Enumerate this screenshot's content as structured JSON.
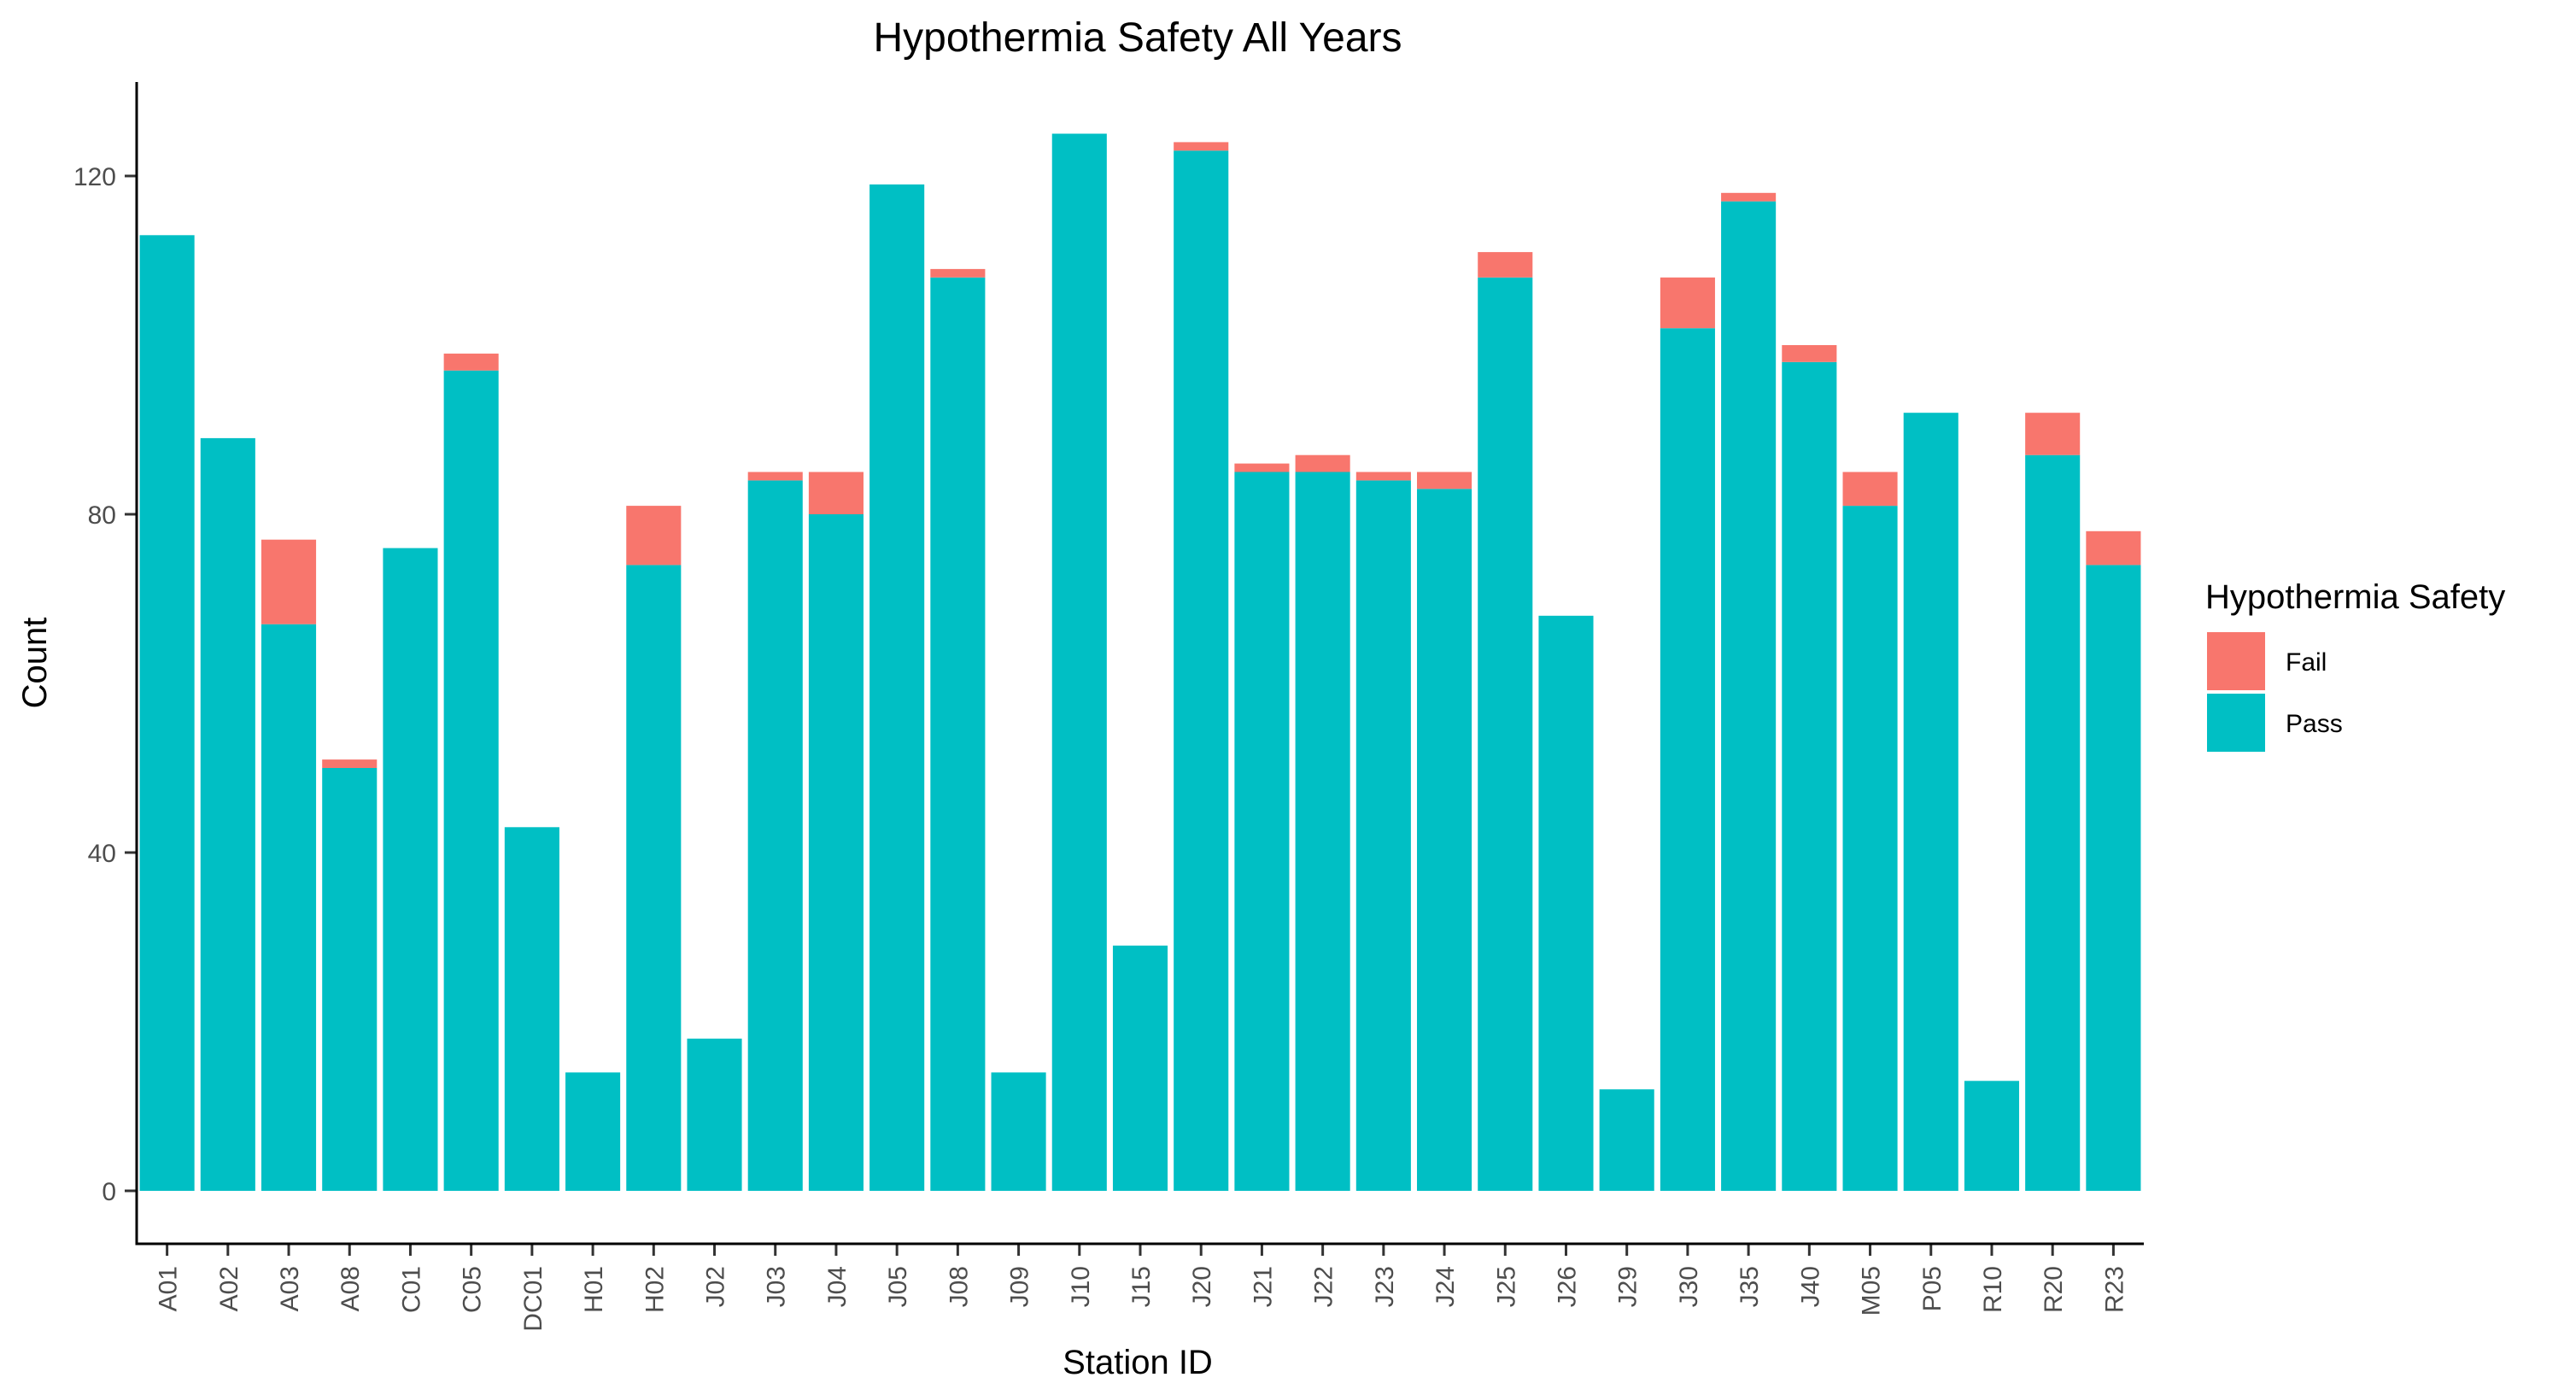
{
  "chart_data": {
    "type": "bar",
    "stacked": true,
    "title": "Hypothermia Safety All Years",
    "xlabel": "Station ID",
    "ylabel": "Count",
    "ylim": [
      0,
      130
    ],
    "yticks": [
      0,
      40,
      80,
      120
    ],
    "categories": [
      "A01",
      "A02",
      "A03",
      "A08",
      "C01",
      "C05",
      "DC01",
      "H01",
      "H02",
      "J02",
      "J03",
      "J04",
      "J05",
      "J08",
      "J09",
      "J10",
      "J15",
      "J20",
      "J21",
      "J22",
      "J23",
      "J24",
      "J25",
      "J26",
      "J29",
      "J30",
      "J35",
      "J40",
      "M05",
      "P05",
      "R10",
      "R20",
      "R23"
    ],
    "series": [
      {
        "name": "Fail",
        "color": "#F8766D",
        "values": [
          0,
          0,
          10,
          1,
          0,
          2,
          0,
          0,
          7,
          0,
          1,
          5,
          0,
          1,
          0,
          0,
          0,
          1,
          1,
          2,
          1,
          2,
          3,
          0,
          0,
          6,
          1,
          2,
          4,
          0,
          0,
          5,
          4
        ]
      },
      {
        "name": "Pass",
        "color": "#00BFC4",
        "values": [
          113,
          89,
          67,
          50,
          76,
          97,
          43,
          14,
          74,
          18,
          84,
          80,
          119,
          108,
          14,
          125,
          29,
          123,
          85,
          85,
          84,
          83,
          108,
          68,
          12,
          102,
          117,
          98,
          81,
          92,
          13,
          87,
          74
        ]
      }
    ],
    "legend": {
      "title": "Hypothermia Safety",
      "position": "right",
      "order": [
        "Fail",
        "Pass"
      ]
    },
    "grid": false
  }
}
